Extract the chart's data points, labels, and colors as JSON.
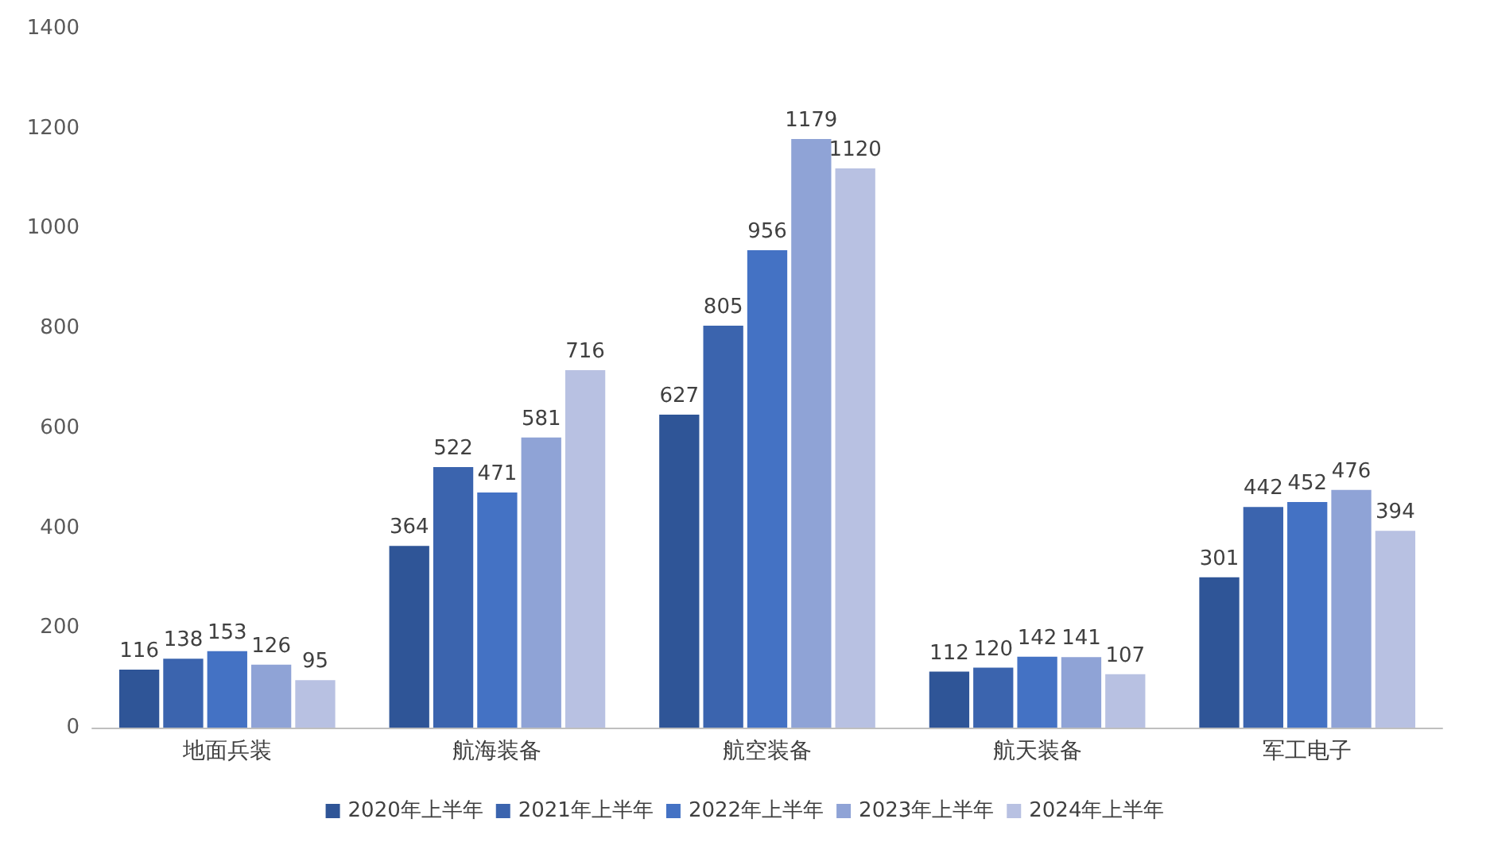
{
  "chart_data": {
    "type": "bar",
    "categories": [
      "地面兵装",
      "航海装备",
      "航空装备",
      "航天装备",
      "军工电子"
    ],
    "series": [
      {
        "name": "2020年上半年",
        "color": "#2f5597",
        "values": [
          116,
          364,
          627,
          112,
          301
        ]
      },
      {
        "name": "2021年上半年",
        "color": "#3b64ae",
        "values": [
          138,
          522,
          805,
          120,
          442
        ]
      },
      {
        "name": "2022年上半年",
        "color": "#4472c4",
        "values": [
          153,
          471,
          956,
          142,
          452
        ]
      },
      {
        "name": "2023年上半年",
        "color": "#8fa3d6",
        "values": [
          126,
          581,
          1179,
          141,
          476
        ]
      },
      {
        "name": "2024年上半年",
        "color": "#b8c1e2",
        "values": [
          95,
          716,
          1120,
          107,
          394
        ]
      }
    ],
    "ylim": [
      0,
      1400
    ],
    "yticks": [
      0,
      200,
      400,
      600,
      800,
      1000,
      1200,
      1400
    ],
    "grid": false,
    "legend": "bottom",
    "data_labels": true
  }
}
